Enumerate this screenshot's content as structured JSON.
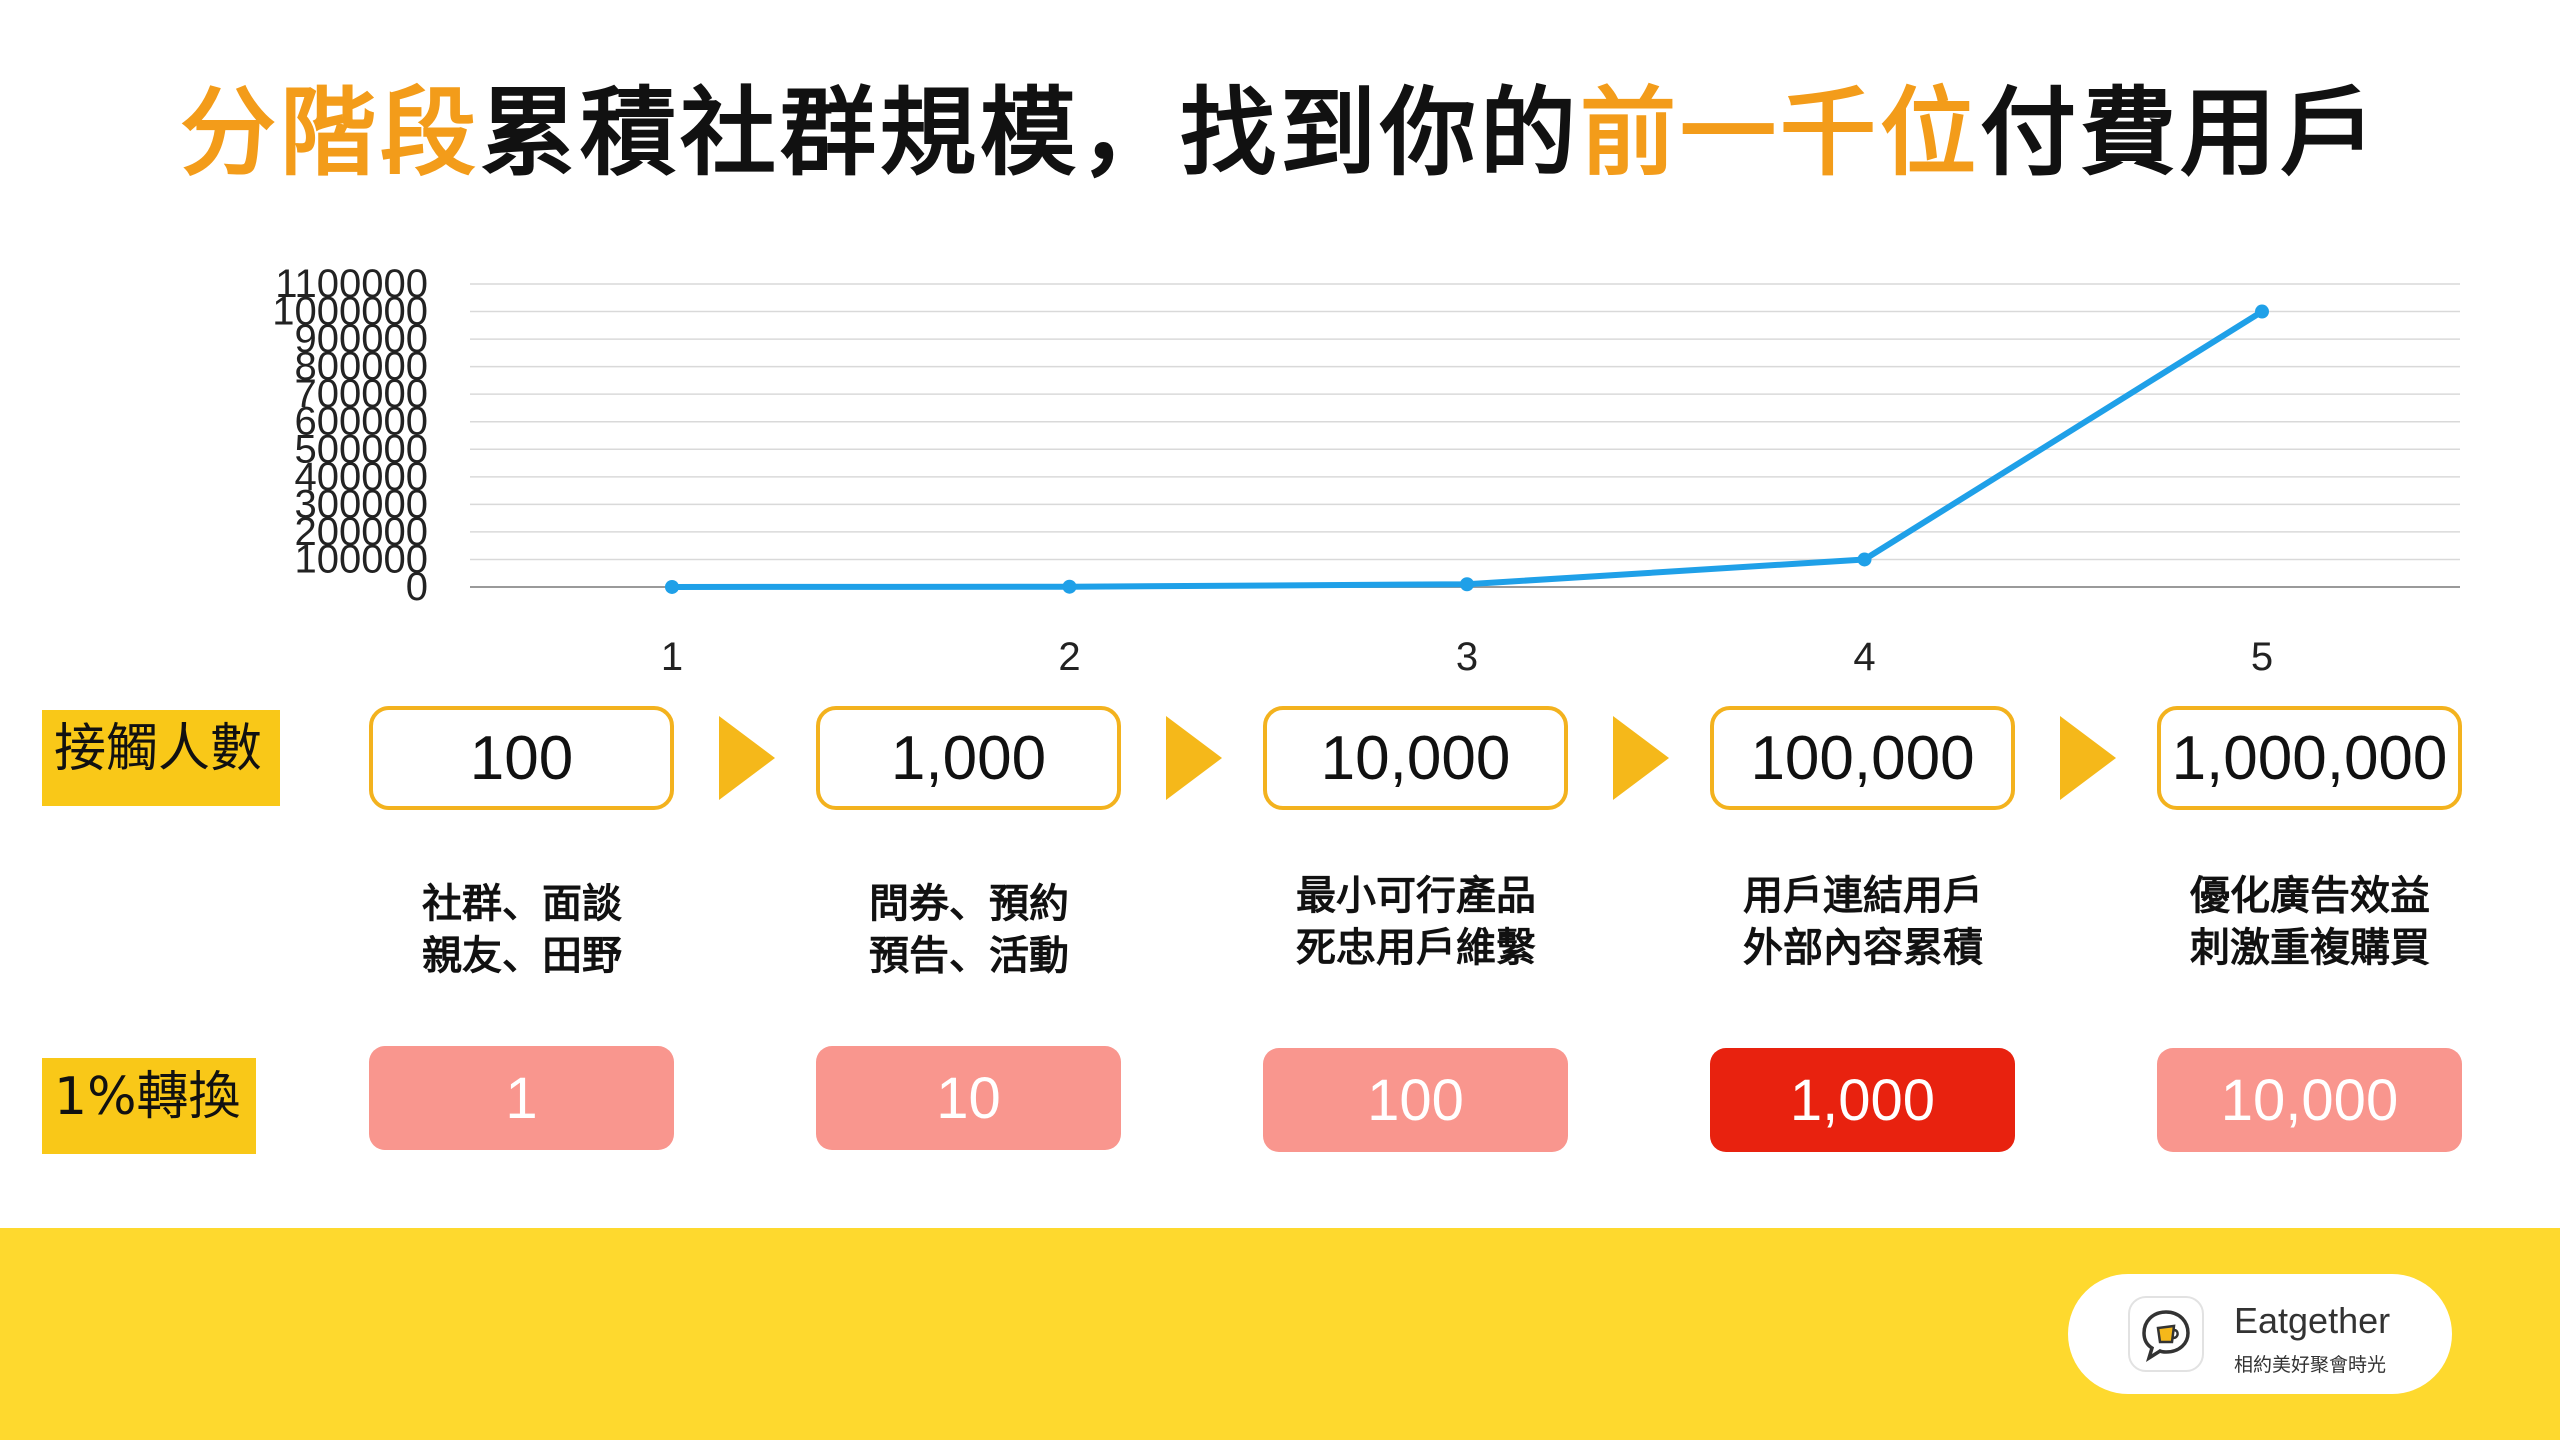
{
  "title": {
    "part1": "分階段",
    "part2": "累積社群規模，找到你的",
    "part3": "前一千位",
    "part4": "付費用戶"
  },
  "colors": {
    "accent_orange": "#f39c1a",
    "line_blue": "#1fa0e8",
    "box_border": "#f3b21e",
    "tag_yellow": "#f9c818",
    "conv_pink": "#f9968e",
    "conv_red": "#e8220f",
    "footer_yellow": "#fed92e"
  },
  "chart_data": {
    "type": "line",
    "x": [
      1,
      2,
      3,
      4,
      5
    ],
    "series": [
      {
        "values": [
          100,
          1000,
          10000,
          100000,
          1000000
        ]
      }
    ],
    "ylim": [
      0,
      1100000
    ],
    "yticks": [
      "0",
      "100000",
      "200000",
      "300000",
      "400000",
      "500000",
      "600000",
      "700000",
      "800000",
      "900000",
      "1000000",
      "1100000"
    ],
    "xticks": [
      "1",
      "2",
      "3",
      "4",
      "5"
    ],
    "grid": true
  },
  "rows": {
    "reach_label": "接觸人數",
    "conversion_label": "1%轉換"
  },
  "stages": [
    {
      "reach": "100",
      "desc_line1": "社群、面談",
      "desc_line2": "親友、田野",
      "conversion": "1"
    },
    {
      "reach": "1,000",
      "desc_line1": "問券、預約",
      "desc_line2": "預告、活動",
      "conversion": "10"
    },
    {
      "reach": "10,000",
      "desc_line1": "最小可行產品",
      "desc_line2": "死忠用戶維繫",
      "conversion": "100"
    },
    {
      "reach": "100,000",
      "desc_line1": "用戶連結用戶",
      "desc_line2": "外部內容累積",
      "conversion": "1,000"
    },
    {
      "reach": "1,000,000",
      "desc_line1": "優化廣告效益",
      "desc_line2": "刺激重複購買",
      "conversion": "10,000"
    }
  ],
  "logo": {
    "name": "Eatgether",
    "tagline": "相約美好聚會時光",
    "icon": "chat-bubble-beer-icon"
  }
}
